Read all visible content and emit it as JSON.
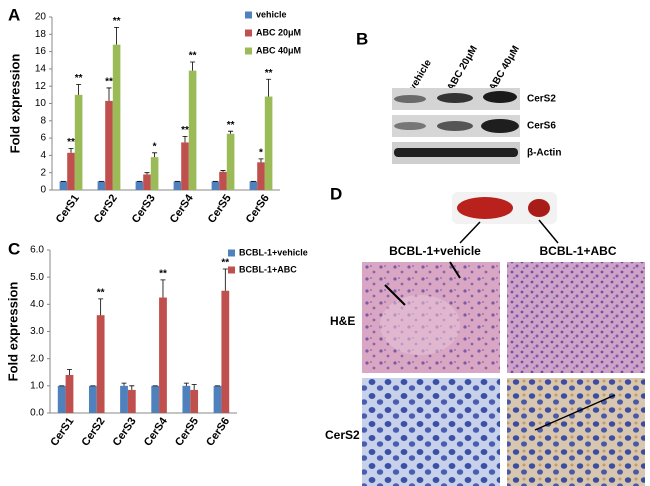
{
  "chart_data": [
    {
      "type": "bar",
      "y_label": "Fold expression",
      "categories": [
        "CerS1",
        "CerS2",
        "CerS3",
        "CerS4",
        "CerS5",
        "CerS6"
      ],
      "series": [
        {
          "name": "vehicle",
          "color": "#4f81bd",
          "values": [
            1,
            1,
            1,
            1,
            1,
            1
          ],
          "errors": [
            0,
            0,
            0,
            0,
            0,
            0
          ],
          "significance": [
            null,
            null,
            null,
            null,
            null,
            null
          ]
        },
        {
          "name": "ABC 20μM",
          "color": "#c0504d",
          "values": [
            4.3,
            10.3,
            1.8,
            5.5,
            2.1,
            3.2
          ],
          "errors": [
            0.5,
            1.5,
            0.2,
            0.7,
            0.15,
            0.4
          ],
          "significance": [
            "**",
            "**",
            null,
            "**",
            null,
            "*"
          ]
        },
        {
          "name": "ABC 40μM",
          "color": "#9bbb59",
          "values": [
            11,
            16.8,
            3.8,
            13.8,
            6.5,
            10.8
          ],
          "errors": [
            1.2,
            2.0,
            0.5,
            1.0,
            0.3,
            2.0
          ],
          "significance": [
            "**",
            "**",
            "*",
            "**",
            "**",
            "**"
          ]
        }
      ],
      "ylim": [
        0,
        20
      ],
      "yticks": [
        0,
        2,
        4,
        6,
        8,
        10,
        12,
        14,
        16,
        18,
        20
      ],
      "grid": false,
      "legend": "upper right"
    },
    {
      "type": "bar",
      "y_label": "Fold expression",
      "categories": [
        "CerS1",
        "CerS2",
        "CerS3",
        "CerS4",
        "CerS5",
        "CerS6"
      ],
      "series": [
        {
          "name": "BCBL-1+vehicle",
          "color": "#4f81bd",
          "values": [
            1,
            1,
            1,
            1,
            1,
            1
          ],
          "errors": [
            0,
            0,
            0.1,
            0,
            0.1,
            0
          ],
          "significance": [
            null,
            null,
            null,
            null,
            null,
            null
          ]
        },
        {
          "name": "BCBL-1+ABC",
          "color": "#c0504d",
          "values": [
            1.4,
            3.6,
            0.85,
            4.25,
            0.85,
            4.5
          ],
          "errors": [
            0.2,
            0.6,
            0.15,
            0.65,
            0.2,
            0.8
          ],
          "significance": [
            null,
            "**",
            null,
            "**",
            null,
            "**"
          ]
        }
      ],
      "ylim": [
        0,
        6
      ],
      "yticks": [
        {
          "value": 0,
          "label": "0.0"
        },
        {
          "value": 1,
          "label": "1.0"
        },
        {
          "value": 2,
          "label": "2.0"
        },
        {
          "value": 3,
          "label": "3.0"
        },
        {
          "value": 4,
          "label": "4.0"
        },
        {
          "value": 5,
          "label": "5.0"
        },
        {
          "value": 6,
          "label": "6.0"
        }
      ],
      "grid": false,
      "legend": "upper right"
    }
  ],
  "panel_labels": [
    "A",
    "B",
    "C",
    "D"
  ],
  "blot": {
    "columns": [
      "vehicle",
      "ABC 20μM",
      "ABC 40μM"
    ],
    "rows": [
      "CerS2",
      "CerS6",
      "β-Actin"
    ]
  },
  "histology": {
    "columns": [
      "BCBL-1+vehicle",
      "BCBL-1+ABC"
    ],
    "rows": [
      "H&E",
      "CerS2"
    ]
  }
}
